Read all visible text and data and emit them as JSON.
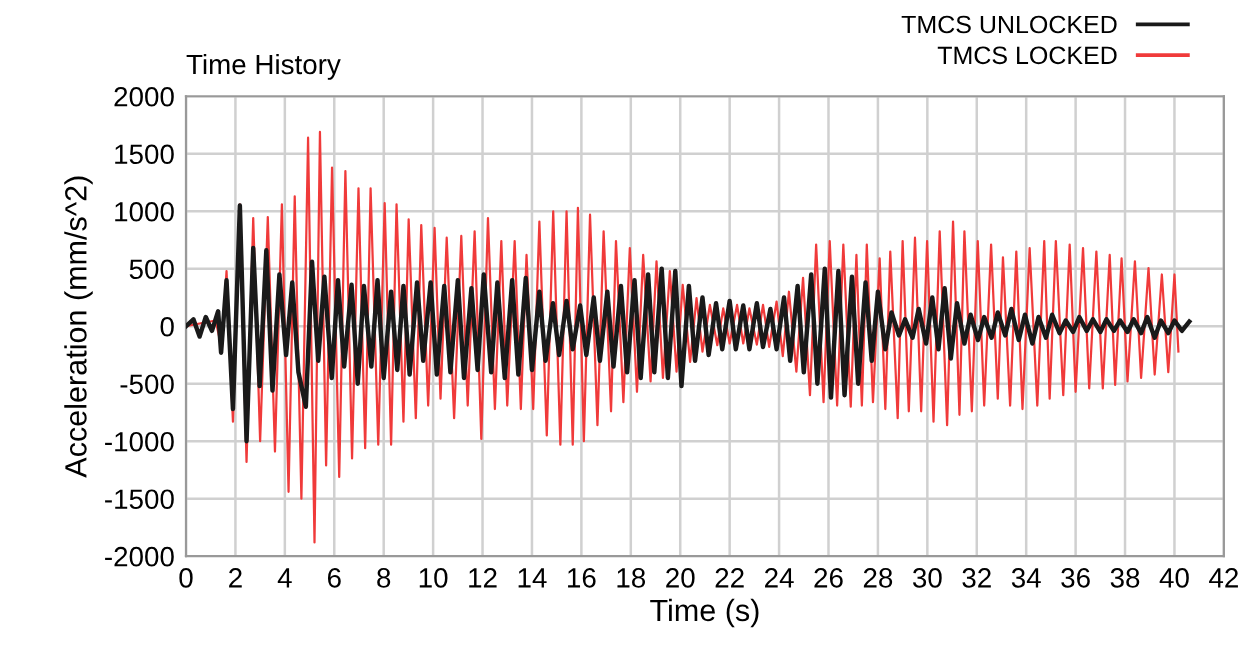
{
  "chart_data": {
    "type": "line",
    "title": "Time History",
    "xlabel": "Time (s)",
    "ylabel": "Acceleration (mm/s^2)",
    "xlim": [
      0,
      42
    ],
    "xticks": [
      0,
      2,
      4,
      6,
      8,
      10,
      12,
      14,
      16,
      18,
      20,
      22,
      24,
      26,
      28,
      30,
      32,
      34,
      36,
      38,
      40,
      42
    ],
    "ylim": [
      -2000,
      2000
    ],
    "yticks": [
      -2000,
      -1500,
      -1000,
      -500,
      0,
      500,
      1000,
      1500,
      2000
    ],
    "grid": true,
    "legend": "top right",
    "marker": "none",
    "line_style": "solid",
    "series": [
      {
        "name": "TMCS LOCKED",
        "color": "#f03a3a",
        "x": [
          0,
          1.2,
          1.45,
          1.64,
          1.9,
          2.18,
          2.45,
          2.72,
          3.0,
          3.31,
          3.6,
          3.88,
          4.15,
          4.4,
          4.67,
          4.94,
          5.2,
          5.42,
          5.67,
          5.91,
          6.2,
          6.45,
          6.72,
          6.98,
          7.25,
          7.47,
          7.78,
          8.04,
          8.3,
          8.52,
          8.8,
          9.01,
          9.3,
          9.52,
          9.8,
          10.06,
          10.3,
          10.55,
          10.85,
          11.14,
          11.4,
          11.68,
          11.95,
          12.22,
          12.5,
          12.76,
          13.0,
          13.3,
          13.55,
          13.78,
          14.05,
          14.3,
          14.6,
          14.86,
          15.15,
          15.4,
          15.65,
          15.86,
          16.1,
          16.35,
          16.65,
          16.9,
          17.2,
          17.4,
          17.7,
          17.96,
          18.25,
          18.5,
          18.8,
          19.04,
          19.3,
          19.58,
          19.85,
          20.1,
          20.4,
          20.66,
          20.9,
          21.2,
          21.5,
          21.74,
          22.0,
          22.3,
          22.55,
          22.8,
          23.1,
          23.35,
          23.6,
          23.9,
          24.15,
          24.4,
          24.7,
          24.97,
          25.25,
          25.5,
          25.8,
          26.05,
          26.35,
          26.6,
          26.9,
          27.13,
          27.35,
          27.55,
          27.8,
          28.07,
          28.3,
          28.5,
          28.8,
          29.0,
          29.25,
          29.5,
          29.75,
          29.99,
          30.25,
          30.5,
          30.8,
          31.04,
          31.3,
          31.5,
          31.8,
          32.04,
          32.3,
          32.58,
          32.85,
          33.06,
          33.35,
          33.6,
          33.85,
          34.14,
          34.45,
          34.73,
          34.95,
          35.2,
          35.5,
          35.76,
          36.0,
          36.3,
          36.55,
          36.84,
          37.1,
          37.38,
          37.6,
          37.86,
          38.1,
          38.4,
          38.65,
          38.95,
          39.2,
          39.49,
          39.75,
          40.0,
          40.16
        ],
        "values": [
          0,
          50,
          -200,
          480,
          -830,
          1060,
          -1180,
          940,
          -1000,
          950,
          -1090,
          1060,
          -1440,
          1130,
          -1500,
          1640,
          -1880,
          1690,
          -1210,
          1380,
          -1310,
          1350,
          -1150,
          1200,
          -1060,
          1200,
          -1030,
          1070,
          -1030,
          1060,
          -830,
          930,
          -800,
          880,
          -690,
          855,
          -630,
          770,
          -800,
          785,
          -690,
          825,
          -980,
          940,
          -720,
          740,
          -690,
          740,
          -720,
          620,
          -720,
          910,
          -950,
          1000,
          -1030,
          1000,
          -1030,
          1030,
          -1000,
          970,
          -860,
          825,
          -740,
          740,
          -660,
          680,
          -570,
          620,
          -480,
          565,
          -450,
          480,
          -395,
          360,
          -310,
          245,
          -220,
          185,
          -165,
          155,
          -150,
          185,
          -150,
          155,
          -160,
          185,
          -180,
          215,
          -260,
          300,
          -395,
          420,
          -600,
          710,
          -660,
          740,
          -690,
          710,
          -700,
          620,
          -690,
          710,
          -660,
          590,
          -720,
          650,
          -800,
          740,
          -740,
          770,
          -740,
          740,
          -830,
          825,
          -860,
          910,
          -770,
          825,
          -740,
          740,
          -690,
          710,
          -630,
          600,
          -690,
          650,
          -720,
          680,
          -690,
          740,
          -630,
          740,
          -600,
          710,
          -570,
          680,
          -540,
          650,
          -540,
          620,
          -510,
          590,
          -480,
          565,
          -450,
          505,
          -420,
          450,
          -400,
          450,
          -220
        ]
      },
      {
        "name": "TMCS UNLOCKED",
        "color": "#1a1a1a",
        "x": [
          0,
          0.3,
          0.55,
          0.8,
          1.05,
          1.3,
          1.42,
          1.64,
          1.9,
          2.18,
          2.45,
          2.72,
          2.98,
          3.25,
          3.5,
          3.78,
          4.05,
          4.3,
          4.55,
          4.85,
          5.1,
          5.35,
          5.6,
          5.9,
          6.15,
          6.4,
          6.7,
          6.95,
          7.2,
          7.5,
          7.75,
          8.0,
          8.3,
          8.55,
          8.8,
          9.05,
          9.35,
          9.6,
          9.9,
          10.15,
          10.45,
          10.7,
          11.0,
          11.25,
          11.55,
          11.8,
          12.05,
          12.35,
          12.6,
          12.9,
          13.2,
          13.45,
          13.75,
          14.0,
          14.3,
          14.55,
          14.85,
          15.1,
          15.4,
          15.65,
          15.95,
          16.2,
          16.5,
          16.75,
          17.05,
          17.3,
          17.6,
          17.85,
          18.15,
          18.4,
          18.7,
          18.95,
          19.25,
          19.5,
          19.8,
          20.05,
          20.35,
          20.6,
          20.9,
          21.15,
          21.45,
          21.7,
          22.0,
          22.25,
          22.55,
          22.8,
          23.1,
          23.35,
          23.65,
          23.9,
          24.2,
          24.45,
          24.75,
          25.0,
          25.3,
          25.55,
          25.85,
          26.1,
          26.4,
          26.65,
          26.95,
          27.2,
          27.5,
          27.75,
          28.0,
          28.3,
          28.55,
          28.85,
          29.1,
          29.4,
          29.65,
          29.95,
          30.2,
          30.45,
          30.7,
          30.95,
          31.2,
          31.5,
          31.75,
          32.05,
          32.3,
          32.6,
          32.85,
          33.15,
          33.4,
          33.7,
          33.95,
          34.25,
          34.5,
          34.8,
          35.05,
          35.35,
          35.6,
          35.9,
          36.15,
          36.45,
          36.7,
          37.0,
          37.25,
          37.55,
          37.8,
          38.1,
          38.35,
          38.65,
          38.9,
          39.2,
          39.45,
          39.75,
          40.0,
          40.3,
          40.6
        ],
        "values": [
          0,
          60,
          -90,
          80,
          -40,
          130,
          -230,
          400,
          -720,
          1050,
          -1000,
          680,
          -520,
          660,
          -560,
          450,
          -250,
          380,
          -400,
          -700,
          560,
          -300,
          430,
          -450,
          400,
          -350,
          360,
          -500,
          350,
          -350,
          400,
          -450,
          300,
          -380,
          350,
          -420,
          380,
          -300,
          380,
          -420,
          350,
          -400,
          400,
          -450,
          330,
          -380,
          450,
          -400,
          380,
          -450,
          400,
          -420,
          420,
          -380,
          300,
          -300,
          200,
          -250,
          220,
          -200,
          180,
          -250,
          250,
          -300,
          300,
          -350,
          350,
          -400,
          400,
          -450,
          450,
          -400,
          500,
          -450,
          480,
          -520,
          350,
          -300,
          250,
          -250,
          200,
          -200,
          220,
          -200,
          180,
          -200,
          200,
          -180,
          150,
          -200,
          250,
          -300,
          350,
          -400,
          450,
          -500,
          500,
          -620,
          480,
          -600,
          430,
          -500,
          380,
          -300,
          300,
          -200,
          120,
          -80,
          60,
          -100,
          150,
          -150,
          250,
          -200,
          330,
          -280,
          200,
          -150,
          100,
          -120,
          80,
          -100,
          120,
          -80,
          150,
          -120,
          100,
          -150,
          80,
          -100,
          100,
          -60,
          50,
          -50,
          80,
          -40,
          60,
          -50,
          60,
          -40,
          50,
          -50,
          60,
          -60,
          80,
          -100,
          50,
          -60,
          50,
          -40,
          40
        ]
      }
    ]
  }
}
